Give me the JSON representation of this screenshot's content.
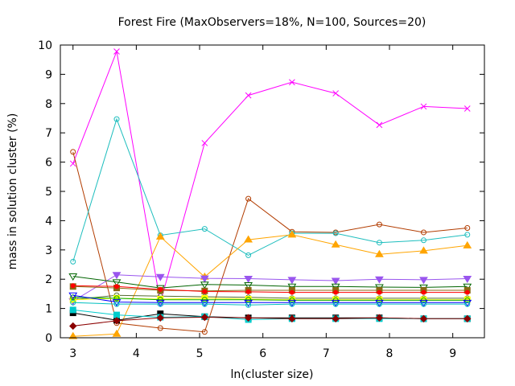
{
  "chart_data": {
    "type": "line",
    "title": "Forest Fire (MaxObservers=18%, N=100, Sources=20)",
    "xlabel": "ln(cluster size)",
    "ylabel": "mass in solution cluster (%)",
    "xlim": [
      2.8,
      9.5
    ],
    "ylim": [
      0,
      10
    ],
    "xticks": [
      3,
      4,
      5,
      6,
      7,
      8,
      9
    ],
    "yticks": [
      0,
      1,
      2,
      3,
      4,
      5,
      6,
      7,
      8,
      9,
      10
    ],
    "x": [
      3.0,
      3.69,
      4.38,
      5.08,
      5.77,
      6.46,
      7.15,
      7.84,
      8.54,
      9.23
    ],
    "grid": false,
    "legend": "none",
    "series": [
      {
        "color": "#ff00ff",
        "marker": "x",
        "values": [
          5.95,
          9.78,
          1.2,
          6.65,
          8.28,
          8.73,
          8.35,
          7.27,
          7.9,
          7.83
        ]
      },
      {
        "color": "#b23c00",
        "marker": "circle",
        "values": [
          6.35,
          0.5,
          0.33,
          0.2,
          4.75,
          3.62,
          3.6,
          3.87,
          3.6,
          3.75
        ]
      },
      {
        "color": "#1ebebe",
        "marker": "circle",
        "values": [
          2.6,
          7.47,
          3.5,
          3.72,
          2.82,
          3.57,
          3.57,
          3.25,
          3.33,
          3.52
        ]
      },
      {
        "color": "#ffa500",
        "marker": "triangle",
        "values": [
          0.05,
          0.13,
          3.45,
          2.08,
          3.35,
          3.52,
          3.18,
          2.85,
          2.97,
          3.15
        ]
      },
      {
        "color": "#9955ee",
        "marker": "triangle-down",
        "values": [
          1.25,
          2.15,
          2.08,
          2.03,
          2.02,
          1.98,
          1.95,
          2.0,
          1.98,
          2.02
        ]
      },
      {
        "color": "#006400",
        "marker": "triangle-down",
        "values": [
          2.1,
          1.9,
          1.7,
          1.82,
          1.8,
          1.75,
          1.75,
          1.73,
          1.72,
          1.75
        ]
      },
      {
        "color": "#8b6914",
        "marker": "square",
        "values": [
          1.75,
          1.7,
          1.62,
          1.6,
          1.62,
          1.62,
          1.62,
          1.62,
          1.62,
          1.62
        ]
      },
      {
        "color": "#ff0000",
        "marker": "dot",
        "values": [
          1.78,
          1.75,
          1.65,
          1.58,
          1.57,
          1.55,
          1.55,
          1.55,
          1.55,
          1.55
        ]
      },
      {
        "color": "#556b2f",
        "marker": "circle",
        "values": [
          1.3,
          1.45,
          1.42,
          1.4,
          1.38,
          1.35,
          1.35,
          1.35,
          1.35,
          1.35
        ]
      },
      {
        "color": "#ffff00",
        "marker": "square",
        "values": [
          1.3,
          1.35,
          1.32,
          1.35,
          1.32,
          1.3,
          1.3,
          1.3,
          1.3,
          1.3
        ]
      },
      {
        "color": "#00aa00",
        "marker": "circle",
        "values": [
          1.38,
          1.35,
          1.3,
          1.3,
          1.3,
          1.28,
          1.28,
          1.28,
          1.28,
          1.28
        ]
      },
      {
        "color": "#0000ff",
        "marker": "triangle-down",
        "values": [
          1.45,
          1.22,
          1.2,
          1.2,
          1.2,
          1.2,
          1.2,
          1.2,
          1.2,
          1.2
        ]
      },
      {
        "color": "#00bfbf",
        "marker": "circle",
        "values": [
          1.2,
          1.15,
          1.15,
          1.15,
          1.12,
          1.15,
          1.15,
          1.15,
          1.15,
          1.15
        ]
      },
      {
        "color": "#000000",
        "marker": "square",
        "values": [
          0.85,
          0.6,
          0.82,
          0.72,
          0.68,
          0.68,
          0.68,
          0.68,
          0.65,
          0.65
        ]
      },
      {
        "color": "#00cccc",
        "marker": "square",
        "values": [
          0.95,
          0.78,
          0.7,
          0.72,
          0.62,
          0.65,
          0.65,
          0.65,
          0.65,
          0.65
        ]
      },
      {
        "color": "#8b0000",
        "marker": "diamond",
        "values": [
          0.4,
          0.58,
          0.68,
          0.7,
          0.68,
          0.65,
          0.65,
          0.68,
          0.65,
          0.65
        ]
      }
    ]
  }
}
